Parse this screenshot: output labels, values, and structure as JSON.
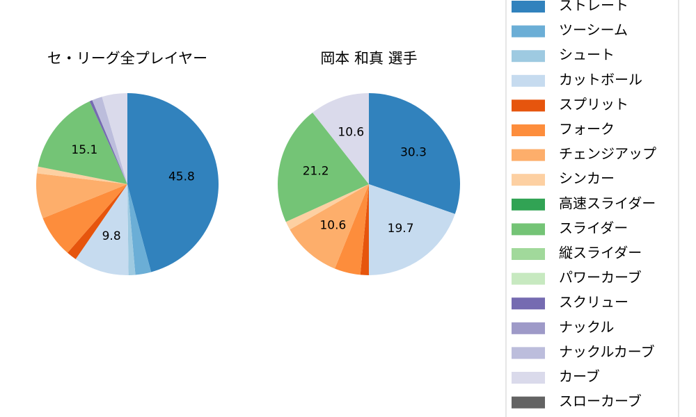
{
  "chart_data": [
    {
      "type": "pie",
      "title": "セ・リーグ全プレイヤー",
      "categories": [
        "ストレート",
        "ツーシーム",
        "シュート",
        "カットボール",
        "スプリット",
        "フォーク",
        "チェンジアップ",
        "シンカー",
        "高速スライダー",
        "スライダー",
        "縦スライダー",
        "パワーカーブ",
        "スクリュー",
        "ナックル",
        "ナックルカーブ",
        "カーブ",
        "スローカーブ"
      ],
      "colors": [
        "#3182bd",
        "#6baed6",
        "#9ecae1",
        "#c6dbef",
        "#e6550d",
        "#fd8d3c",
        "#fdae6b",
        "#fdd0a2",
        "#31a354",
        "#74c476",
        "#a1d99b",
        "#c7e9c0",
        "#756bb1",
        "#9e9ac8",
        "#bcbddc",
        "#dadaeb",
        "#636363"
      ],
      "values": [
        45.8,
        2.8,
        1.2,
        9.8,
        1.8,
        7.5,
        8.0,
        1.2,
        0,
        15.1,
        0,
        0,
        0.5,
        0,
        1.8,
        4.5,
        0
      ],
      "value_labels": [
        "45.8",
        null,
        null,
        "9.8",
        null,
        null,
        null,
        null,
        null,
        "15.1",
        null,
        null,
        null,
        null,
        null,
        null,
        null
      ]
    },
    {
      "type": "pie",
      "title": "岡本 和真  選手",
      "categories": [
        "ストレート",
        "ツーシーム",
        "シュート",
        "カットボール",
        "スプリット",
        "フォーク",
        "チェンジアップ",
        "シンカー",
        "高速スライダー",
        "スライダー",
        "縦スライダー",
        "パワーカーブ",
        "スクリュー",
        "ナックル",
        "ナックルカーブ",
        "カーブ",
        "スローカーブ"
      ],
      "colors": [
        "#3182bd",
        "#6baed6",
        "#9ecae1",
        "#c6dbef",
        "#e6550d",
        "#fd8d3c",
        "#fdae6b",
        "#fdd0a2",
        "#31a354",
        "#74c476",
        "#a1d99b",
        "#c7e9c0",
        "#756bb1",
        "#9e9ac8",
        "#bcbddc",
        "#dadaeb",
        "#636363"
      ],
      "values": [
        30.3,
        0,
        0,
        19.7,
        1.5,
        4.6,
        10.6,
        1.5,
        0,
        21.2,
        0,
        0,
        0,
        0,
        0,
        10.6,
        0
      ],
      "value_labels": [
        "30.3",
        null,
        null,
        "19.7",
        null,
        null,
        "10.6",
        null,
        null,
        "21.2",
        null,
        null,
        null,
        null,
        null,
        "10.6",
        null
      ]
    }
  ]
}
